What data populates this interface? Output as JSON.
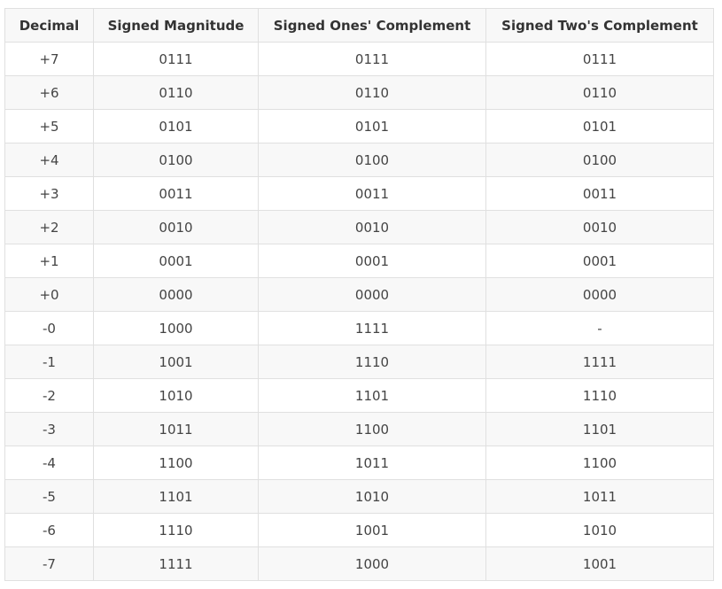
{
  "table": {
    "headers": [
      "Decimal",
      "Signed Magnitude",
      "Signed Ones' Complement",
      "Signed Two's Complement"
    ],
    "rows": [
      [
        "+7",
        "0111",
        "0111",
        "0111"
      ],
      [
        "+6",
        "0110",
        "0110",
        "0110"
      ],
      [
        "+5",
        "0101",
        "0101",
        "0101"
      ],
      [
        "+4",
        "0100",
        "0100",
        "0100"
      ],
      [
        "+3",
        "0011",
        "0011",
        "0011"
      ],
      [
        "+2",
        "0010",
        "0010",
        "0010"
      ],
      [
        "+1",
        "0001",
        "0001",
        "0001"
      ],
      [
        "+0",
        "0000",
        "0000",
        "0000"
      ],
      [
        "-0",
        "1000",
        "1111",
        "-"
      ],
      [
        "-1",
        "1001",
        "1110",
        "1111"
      ],
      [
        "-2",
        "1010",
        "1101",
        "1110"
      ],
      [
        "-3",
        "1011",
        "1100",
        "1101"
      ],
      [
        "-4",
        "1100",
        "1011",
        "1100"
      ],
      [
        "-5",
        "1101",
        "1010",
        "1011"
      ],
      [
        "-6",
        "1110",
        "1001",
        "1010"
      ],
      [
        "-7",
        "1111",
        "1000",
        "1001"
      ]
    ]
  },
  "colors": {
    "border": "#e0e0e0",
    "header_bg": "#f8f8f8",
    "stripe_bg": "#f8f8f8",
    "text": "#444444"
  }
}
